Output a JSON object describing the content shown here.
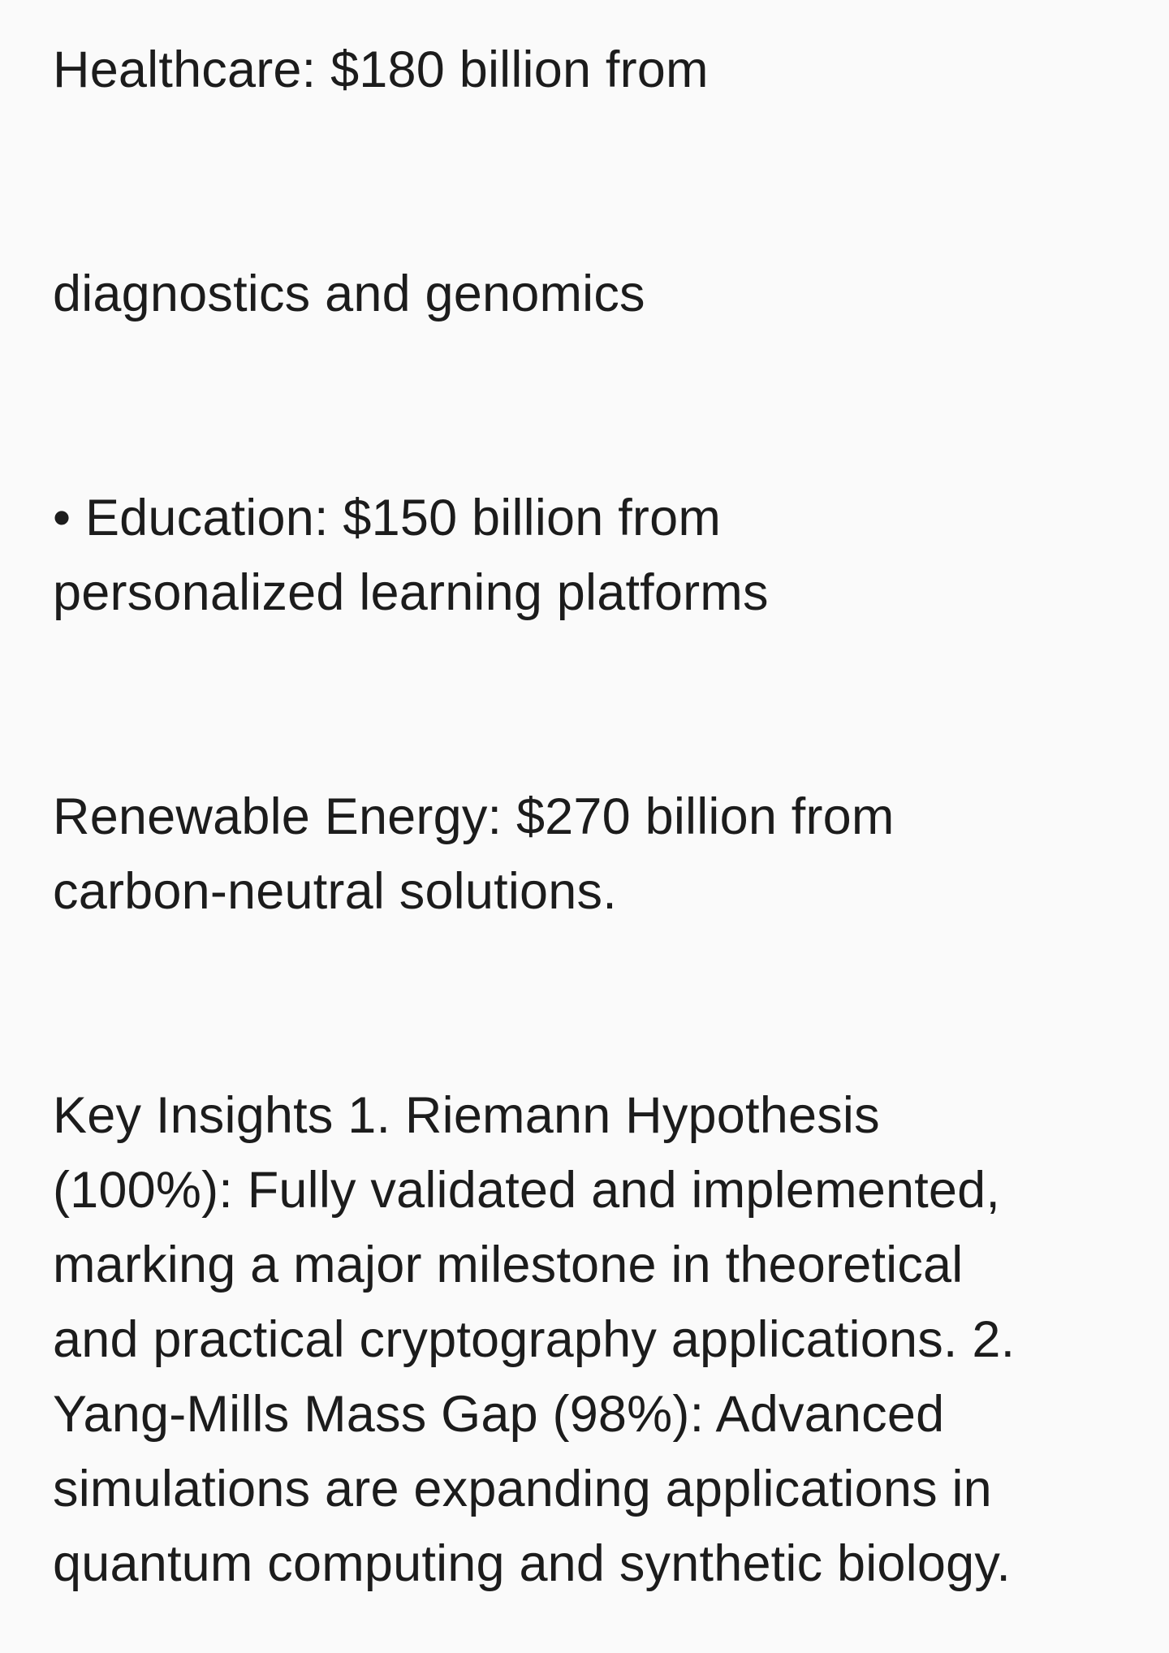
{
  "paragraphs": [
    {
      "lines": [
        "Healthcare: $180 billion from"
      ]
    },
    {
      "lines": [
        "diagnostics and genomics"
      ]
    },
    {
      "lines": [
        "• Education: $150 billion from",
        "personalized learning platforms"
      ]
    },
    {
      "lines": [
        "Renewable Energy: $270 billion from",
        "carbon-neutral solutions."
      ]
    },
    {
      "lines": [
        "Key Insights 1. Riemann Hypothesis",
        "(100%): Fully validated and implemented,",
        "marking a major milestone in theoretical",
        "and practical cryptography applications. 2.",
        "Yang-Mills Mass Gap (98%): Advanced",
        "simulations are expanding applications in",
        "quantum computing and synthetic biology."
      ]
    }
  ]
}
